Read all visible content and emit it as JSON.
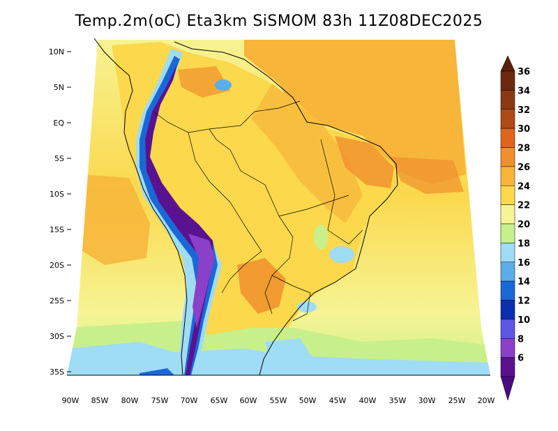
{
  "title": "Temp.2m(oC) Eta3km SiSMOM 83h 11Z08DEC2025",
  "map": {
    "lat_labels": [
      "10N",
      "5N",
      "EQ",
      "5S",
      "10S",
      "15S",
      "20S",
      "25S",
      "30S",
      "35S"
    ],
    "lon_labels": [
      "90W",
      "85W",
      "80W",
      "75W",
      "70W",
      "65W",
      "60W",
      "55W",
      "50W",
      "45W",
      "40W",
      "35W",
      "30W",
      "25W",
      "20W"
    ]
  },
  "colorbar": {
    "levels": [
      {
        "label": "36",
        "color": "#6b2a10"
      },
      {
        "label": "34",
        "color": "#8a3a12"
      },
      {
        "label": "32",
        "color": "#b04a14"
      },
      {
        "label": "30",
        "color": "#e0641c"
      },
      {
        "label": "28",
        "color": "#f0902c"
      },
      {
        "label": "26",
        "color": "#f7b53a"
      },
      {
        "label": "24",
        "color": "#fbd84c"
      },
      {
        "label": "22",
        "color": "#f6f495"
      },
      {
        "label": "20",
        "color": "#c8f08a"
      },
      {
        "label": "18",
        "color": "#9fdcf5"
      },
      {
        "label": "16",
        "color": "#5aaeea"
      },
      {
        "label": "14",
        "color": "#1a68d8"
      },
      {
        "label": "12",
        "color": "#0a30b0"
      },
      {
        "label": "10",
        "color": "#5a56e6"
      },
      {
        "label": "8",
        "color": "#8a40c8"
      },
      {
        "label": "6",
        "color": "#5a1290"
      }
    ],
    "top_color": "#5a1f0c",
    "bottom_color": "#4a0a80"
  },
  "colors": {
    "ocean_north": "#f7b53a",
    "ocean_south": "#fbd84c",
    "land": "#fbd84c",
    "south_cold": "#9fdcf5"
  }
}
